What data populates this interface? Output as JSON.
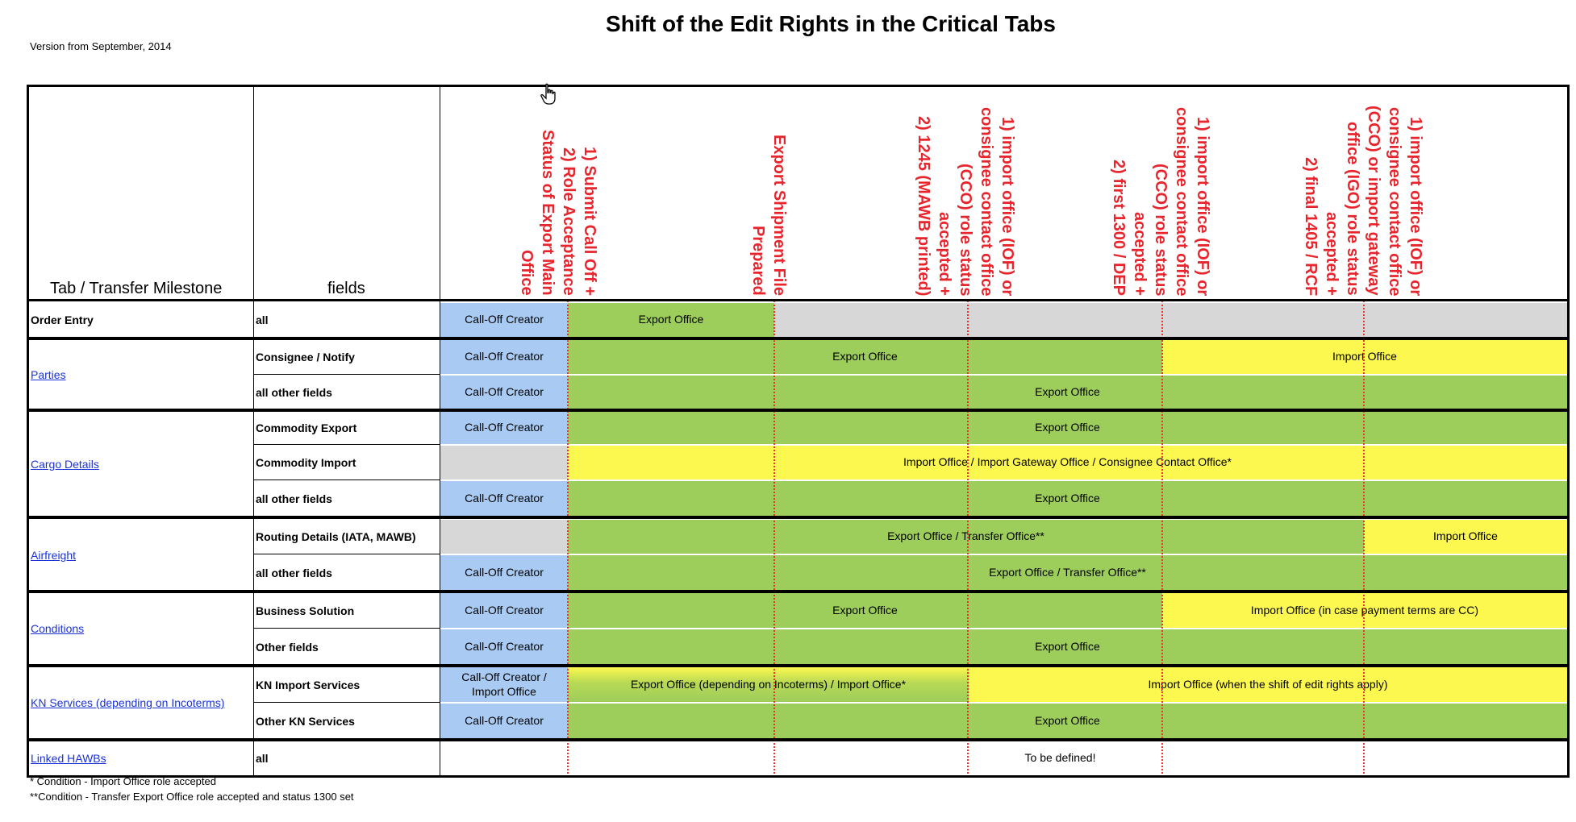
{
  "title": "Shift of the Edit Rights in the Critical Tabs",
  "version": "Version from September, 2014",
  "headers": {
    "tab": "Tab / Transfer Milestone",
    "fields": "fields",
    "milestones": [
      [
        "1) Submit Call Off +",
        "2) Role Acceptance",
        "Status of Export Main",
        "Office"
      ],
      [
        "Export Shipment File",
        "Prepared"
      ],
      [
        "1) import office (IOF) or",
        "consignee contact office",
        "(CCO) role status",
        "accepted +",
        "2) 1245 (MAWB printed)"
      ],
      [
        "1) import office (IOF) or",
        "consignee contact office",
        "(CCO) role status",
        "accepted +",
        "2) first 1300 / DEP"
      ],
      [
        "1) import office (IOF) or",
        "consignee contact office",
        "(CCO) or import gateway",
        "office (IGO) role status",
        "accepted +",
        "2) final 1405 / RCF"
      ]
    ]
  },
  "tabs": {
    "order_entry": "Order Entry",
    "parties": "Parties",
    "cargo_details": "Cargo Details",
    "airfreight": "Airfreight",
    "conditions": "Conditions",
    "kn_services": "KN Services (depending on Incoterms)",
    "linked_hawbs": "Linked HAWBs"
  },
  "fields": {
    "oe_all": "all",
    "consignee_notify": "Consignee / Notify",
    "parties_other": "all other fields",
    "commodity_export": "Commodity Export",
    "commodity_import": "Commodity Import",
    "cargo_other": "all other fields",
    "routing_details": "Routing Details (IATA, MAWB)",
    "air_other": "all other fields",
    "business_solution": "Business Solution",
    "other_fields": "Other fields",
    "kn_import_services": "KN Import Services",
    "other_kn_services": "Other KN Services",
    "linked_all": "all"
  },
  "cells": {
    "call_off_creator": "Call-Off Creator",
    "call_off_creator_import_1": "Call-Off Creator /",
    "call_off_creator_import_2": "Import Office",
    "export_office": "Export Office",
    "import_office": "Import Office",
    "import_gateway_consignee": "Import Office / Import Gateway Office / Consignee Contact Office*",
    "export_transfer": "Export Office / Transfer Office**",
    "import_office_cc": "Import Office (in case payment terms are CC)",
    "export_depending": "Export Office (depending on Incoterms) / Import Office*",
    "import_when_shift": "Import Office (when the shift of edit rights apply)",
    "to_be_defined": "To be defined!"
  },
  "footnotes": [
    "* Condition - Import Office role accepted",
    "**Condition - Transfer Export Office role accepted and status 1300 set"
  ],
  "colors": {
    "blue": "#a9cbf3",
    "green": "#9dcd5b",
    "yellow": "#fcf84f",
    "grey": "#d7d7d7",
    "header_red": "#e8252d",
    "link_blue": "#1b33d6"
  },
  "icons": {
    "cursor": "hand-pointer-icon"
  }
}
